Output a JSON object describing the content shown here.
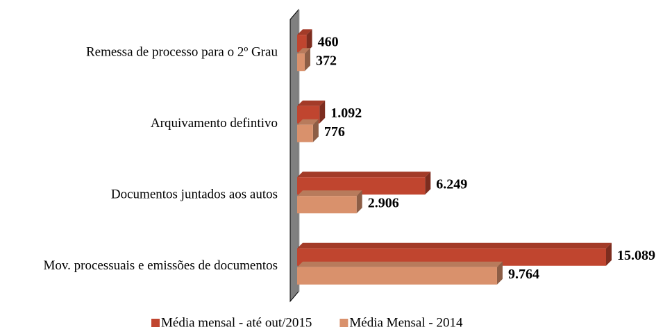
{
  "chart_data": {
    "type": "bar3d",
    "orientation": "horizontal",
    "categories": [
      "Remessa de processo para o 2º Grau",
      "Arquivamento defintivo",
      "Documentos juntados aos autos",
      "Mov. processuais e emissões de documentos"
    ],
    "series": [
      {
        "name": "Média mensal - até out/2015",
        "color": "#c0452f",
        "values": [
          460,
          1092,
          6249,
          15089
        ],
        "value_labels": [
          "460",
          "1.092",
          "6.249",
          "15.089"
        ]
      },
      {
        "name": "Média Mensal - 2014",
        "color": "#d9916c",
        "values": [
          372,
          776,
          2906,
          9764
        ],
        "value_labels": [
          "372",
          "776",
          "2.906",
          "9.764"
        ]
      }
    ],
    "legend": "bottom"
  }
}
